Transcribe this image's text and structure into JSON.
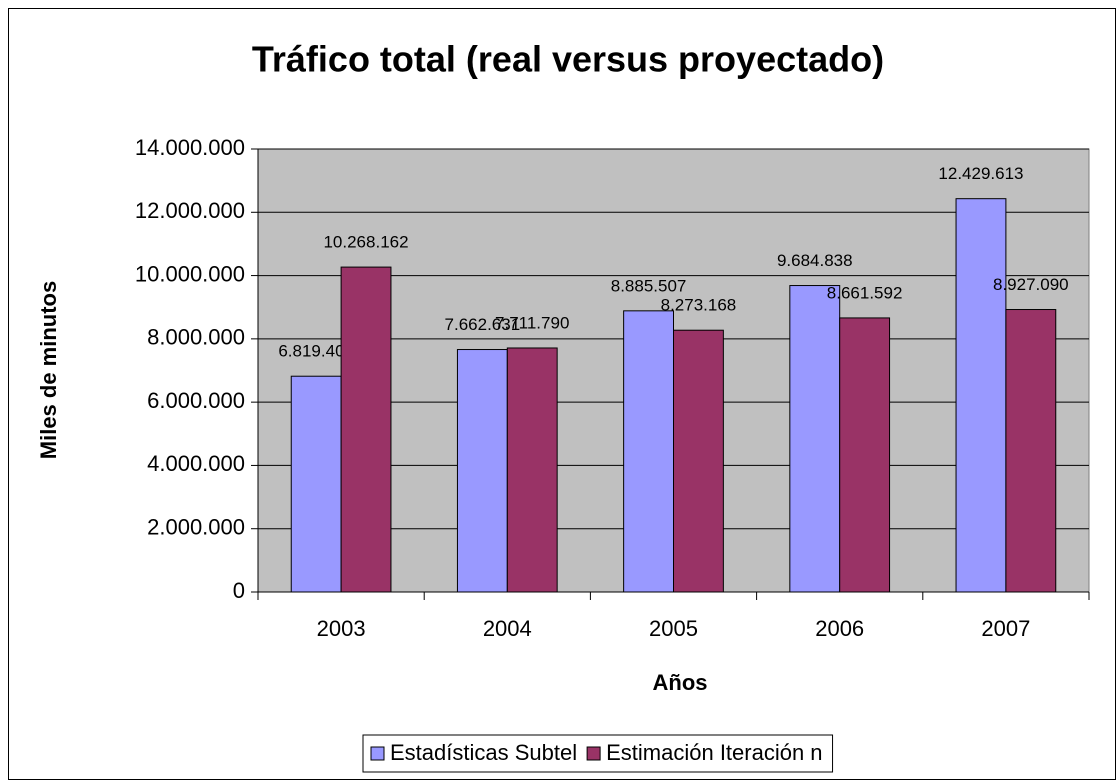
{
  "chart_data": {
    "type": "bar",
    "title": "Tráfico total (real versus proyectado)",
    "x_label": "Años",
    "y_label": "Miles de minutos",
    "categories": [
      "2003",
      "2004",
      "2005",
      "2006",
      "2007"
    ],
    "series": [
      {
        "name": "Estadísticas Subtel",
        "color": "#9999ff",
        "values": [
          6819405,
          7662631,
          8885507,
          9684838,
          12429613
        ],
        "value_labels": [
          "6.819.405",
          "7.662.631",
          "8.885.507",
          "9.684.838",
          "12.429.613"
        ]
      },
      {
        "name": "Estimación Iteración n",
        "color": "#993366",
        "values": [
          10268162,
          7711790,
          8273168,
          8661592,
          8927090
        ],
        "value_labels": [
          "10.268.162",
          "7.711.790",
          "8.273.168",
          "8.661.592",
          "8.927.090"
        ]
      }
    ],
    "ylim": [
      0,
      14000000
    ],
    "yticks": [
      {
        "value": 0,
        "label": "0"
      },
      {
        "value": 2000000,
        "label": "2.000.000"
      },
      {
        "value": 4000000,
        "label": "4.000.000"
      },
      {
        "value": 6000000,
        "label": "6.000.000"
      },
      {
        "value": 8000000,
        "label": "8.000.000"
      },
      {
        "value": 10000000,
        "label": "10.000.000"
      },
      {
        "value": 12000000,
        "label": "12.000.000"
      },
      {
        "value": 14000000,
        "label": "14.000.000"
      }
    ],
    "grid": true,
    "plot_background": "#c0c0c0",
    "legend": "bottom"
  }
}
